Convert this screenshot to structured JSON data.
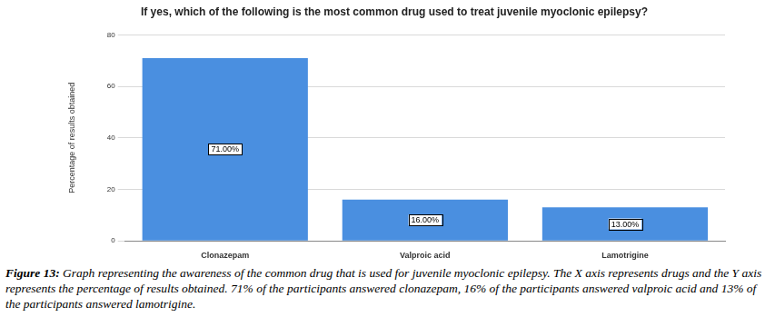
{
  "chart_data": {
    "type": "bar",
    "title": "If yes, which of the following is the most common drug used to treat juvenile myoclonic epilepsy?",
    "y_label": "Percentage of results obtained",
    "categories": [
      "Clonazepam",
      "Valproic acid",
      "Lamotrigine"
    ],
    "values": [
      71,
      16,
      13
    ],
    "value_labels": [
      "71.00%",
      "16.00%",
      "13.00%"
    ],
    "data_labels": true,
    "color": "#4a8fe0",
    "ylim": [
      0,
      80
    ],
    "yticks": [
      0,
      20,
      40,
      60,
      80
    ],
    "grid": true,
    "caption_label": "Figure 13:",
    "caption": "Graph representing the awareness of the common drug that is used for juvenile myoclonic epilepsy. The X axis represents drugs and the Y axis represents the percentage of results obtained. 71% of the participants answered clonazepam, 16% of the participants answered valproic acid and 13% of the participants answered lamotrigine."
  }
}
